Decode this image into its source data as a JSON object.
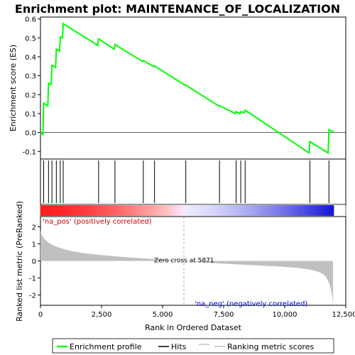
{
  "chart_data": {
    "type": "line",
    "title": "Enrichment plot: MAINTENANCE_OF_LOCALIZATION",
    "top_panel": {
      "ylabel": "Enrichment score (ES)",
      "ylim": [
        -0.14,
        0.61
      ],
      "yticks": [
        "-0.1",
        "0.0",
        "0.1",
        "0.2",
        "0.3",
        "0.4",
        "0.5",
        "0.6"
      ],
      "ytick_values": [
        -0.1,
        0.0,
        0.1,
        0.2,
        0.3,
        0.4,
        0.5,
        0.6
      ],
      "color": "#00ff00",
      "points": [
        [
          0,
          0
        ],
        [
          100,
          -0.01
        ],
        [
          130,
          0.155
        ],
        [
          300,
          0.14
        ],
        [
          330,
          0.26
        ],
        [
          440,
          0.255
        ],
        [
          470,
          0.355
        ],
        [
          620,
          0.345
        ],
        [
          650,
          0.44
        ],
        [
          780,
          0.43
        ],
        [
          810,
          0.505
        ],
        [
          900,
          0.5
        ],
        [
          930,
          0.575
        ],
        [
          2350,
          0.46
        ],
        [
          2380,
          0.495
        ],
        [
          3020,
          0.44
        ],
        [
          3050,
          0.465
        ],
        [
          4180,
          0.375
        ],
        [
          4210,
          0.38
        ],
        [
          4640,
          0.348
        ],
        [
          4670,
          0.352
        ],
        [
          5920,
          0.25
        ],
        [
          5950,
          0.25
        ],
        [
          7300,
          0.14
        ],
        [
          7330,
          0.142
        ],
        [
          7980,
          0.1
        ],
        [
          8010,
          0.11
        ],
        [
          8170,
          0.1
        ],
        [
          8200,
          0.11
        ],
        [
          8350,
          0.105
        ],
        [
          8380,
          0.118
        ],
        [
          11000,
          -0.108
        ],
        [
          11030,
          -0.048
        ],
        [
          11780,
          -0.108
        ],
        [
          11810,
          0.015
        ],
        [
          12000,
          0.005
        ]
      ]
    },
    "hits_panel": {
      "hit_ranks": [
        130,
        330,
        470,
        650,
        810,
        930,
        2380,
        3050,
        4210,
        4670,
        5950,
        7330,
        8010,
        8200,
        8380,
        11030,
        11810
      ]
    },
    "bottom_panel": {
      "ylabel": "Ranked list metric (PreRanked)",
      "ylim": [
        -2.6,
        2.6
      ],
      "yticks": [
        "-2",
        "-1",
        "0",
        "1",
        "2"
      ],
      "ytick_values": [
        -2,
        -1,
        0,
        1,
        2
      ],
      "metric_curve": [
        [
          0,
          1.75
        ],
        [
          50,
          1.5
        ],
        [
          150,
          1.3
        ],
        [
          300,
          1.1
        ],
        [
          500,
          0.93
        ],
        [
          800,
          0.76
        ],
        [
          1200,
          0.6
        ],
        [
          1800,
          0.45
        ],
        [
          2500,
          0.34
        ],
        [
          3500,
          0.22
        ],
        [
          4500,
          0.12
        ],
        [
          5871,
          0.0
        ],
        [
          7000,
          -0.12
        ],
        [
          8000,
          -0.2
        ],
        [
          9000,
          -0.27
        ],
        [
          10000,
          -0.35
        ],
        [
          10600,
          -0.42
        ],
        [
          11000,
          -0.5
        ],
        [
          11300,
          -0.6
        ],
        [
          11550,
          -0.75
        ],
        [
          11700,
          -0.95
        ],
        [
          11820,
          -1.3
        ],
        [
          11900,
          -1.75
        ],
        [
          11950,
          -2.1
        ],
        [
          11980,
          -2.6
        ]
      ],
      "zero_cross_label": "Zero cross at 5871",
      "zero_cross_rank": 5871,
      "pos_label": "'na_pos' (positively correlated)",
      "neg_label": "'na_neg' (negatively correlated)"
    },
    "xlabel": "Rank in Ordered Dataset",
    "xlim": [
      0,
      12500
    ],
    "xticks": [
      "0",
      "2,500",
      "5,000",
      "7,500",
      "10,000",
      "12,500"
    ],
    "xtick_values": [
      0,
      2500,
      5000,
      7500,
      10000,
      12500
    ],
    "dataset_size": 12000,
    "legend": {
      "placement": "bottom",
      "items": [
        {
          "label": "Enrichment profile",
          "color": "#00ff00"
        },
        {
          "label": "Hits",
          "color": "#000000"
        },
        {
          "label": "Ranking metric scores",
          "color": "#c0c0c0"
        }
      ]
    },
    "grid": false
  }
}
